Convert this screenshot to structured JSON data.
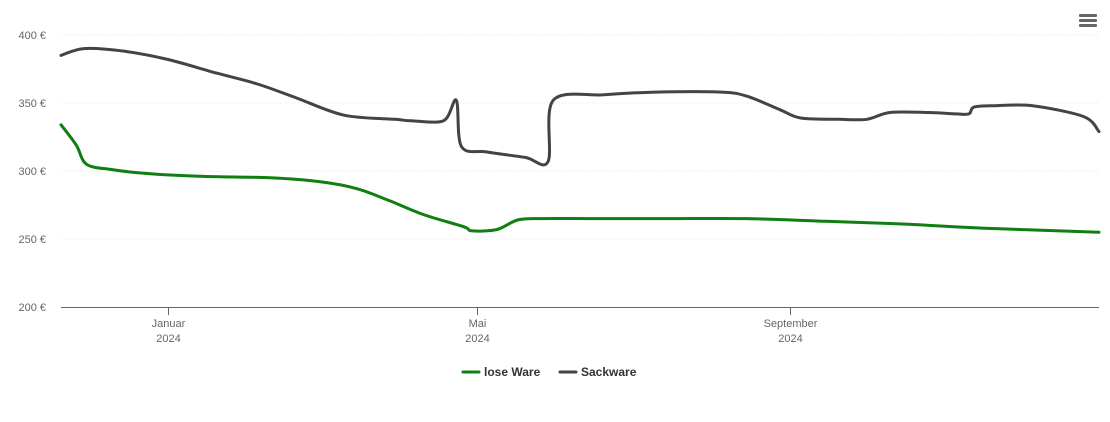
{
  "chart_data": {
    "type": "line",
    "x_type": "date",
    "title": "",
    "xlabel": "",
    "ylabel": "",
    "ylim": [
      200,
      400
    ],
    "xlim": [
      "2023-11-20",
      "2024-12-31"
    ],
    "y_ticks": [
      {
        "value": 200,
        "label": "200 €"
      },
      {
        "value": 250,
        "label": "250 €"
      },
      {
        "value": 300,
        "label": "300 €"
      },
      {
        "value": 350,
        "label": "350 €"
      },
      {
        "value": 400,
        "label": "400 €"
      }
    ],
    "x_ticks": [
      {
        "date": "2024-01-01",
        "month": "Januar",
        "year": "2024"
      },
      {
        "date": "2024-05-01",
        "month": "Mai",
        "year": "2024"
      },
      {
        "date": "2024-09-01",
        "month": "September",
        "year": "2024"
      }
    ],
    "grid": "horizontal",
    "legend_position": "bottom-center",
    "series": [
      {
        "name": "lose Ware",
        "color": "#107e10",
        "points": [
          [
            "2023-11-20",
            334
          ],
          [
            "2023-11-26",
            319
          ],
          [
            "2023-11-30",
            305
          ],
          [
            "2023-12-10",
            301
          ],
          [
            "2023-12-25",
            298
          ],
          [
            "2024-01-15",
            296
          ],
          [
            "2024-02-10",
            295
          ],
          [
            "2024-03-01",
            292
          ],
          [
            "2024-03-15",
            287
          ],
          [
            "2024-03-28",
            278
          ],
          [
            "2024-04-10",
            268
          ],
          [
            "2024-04-26",
            259
          ],
          [
            "2024-04-29",
            256
          ],
          [
            "2024-05-09",
            257
          ],
          [
            "2024-05-17",
            264
          ],
          [
            "2024-05-26",
            265
          ],
          [
            "2024-06-15",
            265
          ],
          [
            "2024-07-15",
            265
          ],
          [
            "2024-08-15",
            265
          ],
          [
            "2024-09-15",
            263
          ],
          [
            "2024-10-15",
            261
          ],
          [
            "2024-11-15",
            258
          ],
          [
            "2024-12-31",
            255
          ]
        ]
      },
      {
        "name": "Sackware",
        "color": "#434348",
        "points": [
          [
            "2023-11-20",
            385
          ],
          [
            "2023-11-29",
            390
          ],
          [
            "2023-12-15",
            388
          ],
          [
            "2024-01-01",
            382
          ],
          [
            "2024-01-20",
            372
          ],
          [
            "2024-02-05",
            364
          ],
          [
            "2024-02-20",
            354
          ],
          [
            "2024-03-10",
            341
          ],
          [
            "2024-03-30",
            338
          ],
          [
            "2024-04-05",
            337
          ],
          [
            "2024-04-18",
            337
          ],
          [
            "2024-04-23",
            352
          ],
          [
            "2024-04-25",
            318
          ],
          [
            "2024-05-05",
            314
          ],
          [
            "2024-05-20",
            310
          ],
          [
            "2024-05-29",
            307
          ],
          [
            "2024-05-31",
            352
          ],
          [
            "2024-06-20",
            356
          ],
          [
            "2024-07-10",
            358
          ],
          [
            "2024-08-05",
            358
          ],
          [
            "2024-08-15",
            355
          ],
          [
            "2024-08-28",
            345
          ],
          [
            "2024-09-05",
            339
          ],
          [
            "2024-09-20",
            338
          ],
          [
            "2024-10-01",
            338
          ],
          [
            "2024-10-10",
            343
          ],
          [
            "2024-10-25",
            343
          ],
          [
            "2024-11-05",
            342
          ],
          [
            "2024-11-10",
            342
          ],
          [
            "2024-11-12",
            347
          ],
          [
            "2024-11-20",
            348
          ],
          [
            "2024-12-05",
            348
          ],
          [
            "2024-12-25",
            340
          ],
          [
            "2024-12-31",
            329
          ]
        ]
      }
    ]
  }
}
